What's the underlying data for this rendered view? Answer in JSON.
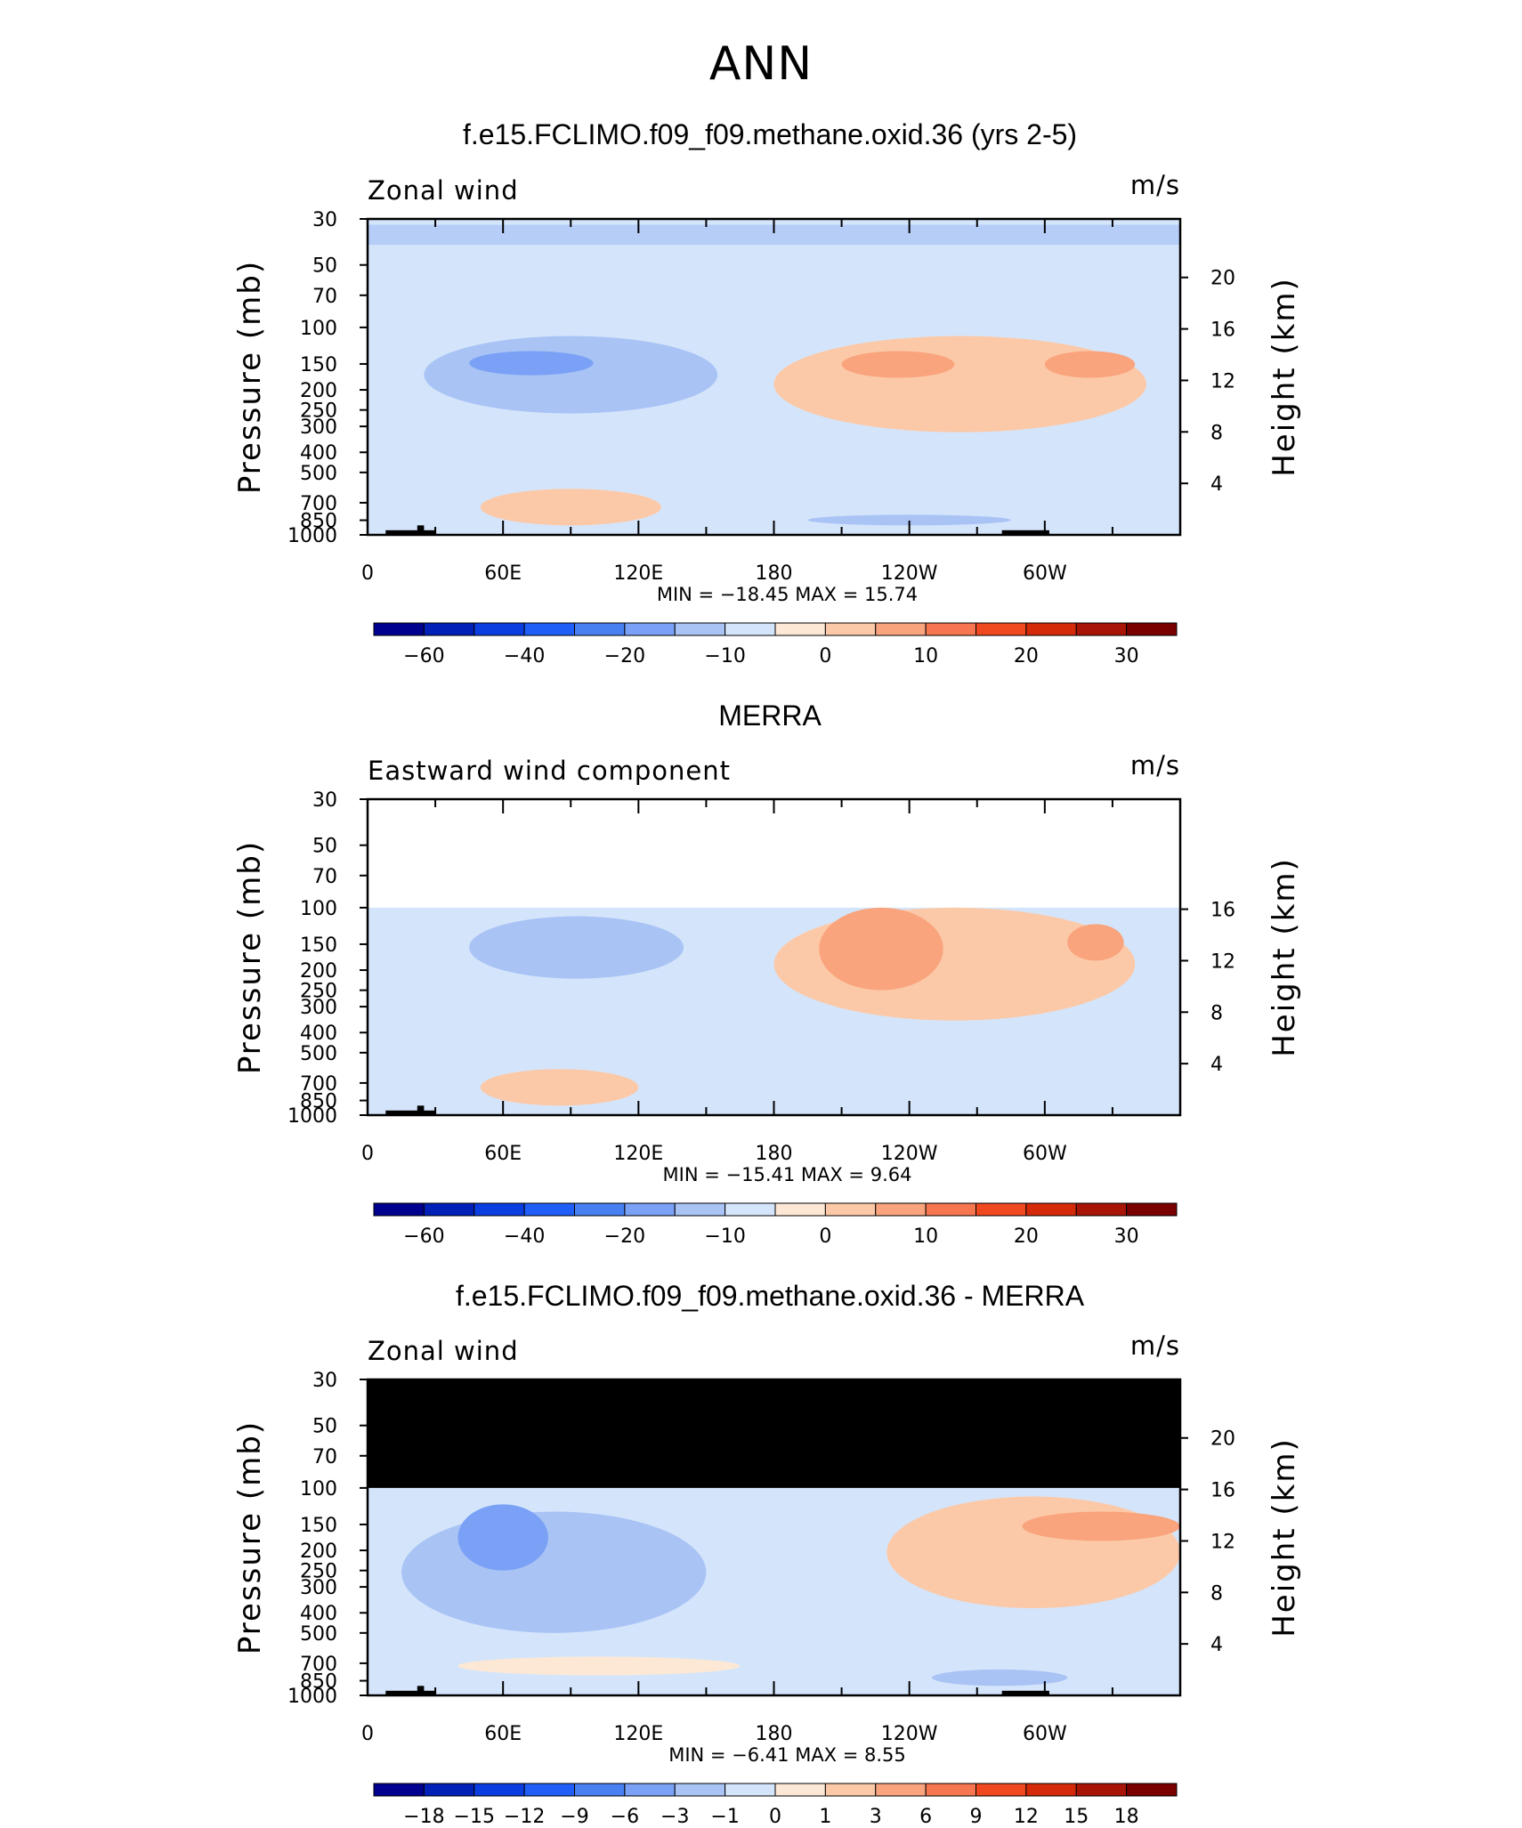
{
  "main_title": "ANN",
  "chart_data": [
    {
      "type": "heatmap",
      "title": "f.e15.FCLIMO.f09_f09.methane.oxid.36 (yrs 2-5)",
      "left_label": "Zonal wind",
      "units_label": "m/s",
      "ylabel": "Pressure (mb)",
      "y2label": "Height (km)",
      "xlabel": "",
      "x_ticks": [
        "0",
        "60E",
        "120E",
        "180",
        "120W",
        "60W"
      ],
      "y_ticks": [
        "30",
        "50",
        "70",
        "100",
        "150",
        "200",
        "250",
        "300",
        "400",
        "500",
        "700",
        "850",
        "1000"
      ],
      "y2_ticks": [
        "20",
        "16",
        "12",
        "8",
        "4"
      ],
      "ylim": [
        1000,
        30
      ],
      "log_y": true,
      "min_max_text": "MIN = −18.45 MAX = 15.74",
      "min": -18.45,
      "max": 15.74,
      "colorbar_ticks": [
        "−60",
        "−40",
        "−20",
        "−10",
        "0",
        "10",
        "20",
        "30"
      ],
      "colorbar_colors": [
        "#00008f",
        "#0020b8",
        "#0a3ee0",
        "#1f5ff8",
        "#4880f2",
        "#7aa1f5",
        "#a9c3f5",
        "#d4e5fb",
        "#fde8d5",
        "#fcc9a8",
        "#f9a47d",
        "#f67650",
        "#f04920",
        "#d42a0a",
        "#a81405",
        "#7a0000"
      ],
      "contours": [
        {
          "level": "-10",
          "color": "#a9c3f5",
          "lon": [
            25,
            155
          ],
          "p": [
            110,
            260
          ]
        },
        {
          "level": "-15",
          "color": "#7aa1f5",
          "lon": [
            45,
            100
          ],
          "p": [
            130,
            170
          ]
        },
        {
          "level": "5",
          "color": "#fcc9a8",
          "lon": [
            180,
            345
          ],
          "p": [
            110,
            320
          ]
        },
        {
          "level": "10",
          "color": "#f9a47d",
          "lon": [
            210,
            260
          ],
          "p": [
            130,
            175
          ]
        },
        {
          "level": "10",
          "color": "#f9a47d",
          "lon": [
            300,
            340
          ],
          "p": [
            130,
            175
          ]
        },
        {
          "level": "5",
          "color": "#fcc9a8",
          "lon": [
            50,
            130
          ],
          "p": [
            600,
            900
          ]
        },
        {
          "level": "-5",
          "color": "#a9c3f5",
          "lon": [
            195,
            285
          ],
          "p": [
            800,
            900
          ]
        }
      ]
    },
    {
      "type": "heatmap",
      "title": "MERRA",
      "left_label": "Eastward wind component",
      "units_label": "m/s",
      "ylabel": "Pressure (mb)",
      "y2label": "Height (km)",
      "xlabel": "",
      "x_ticks": [
        "0",
        "60E",
        "120E",
        "180",
        "120W",
        "60W"
      ],
      "y_ticks": [
        "30",
        "50",
        "70",
        "100",
        "150",
        "200",
        "250",
        "300",
        "400",
        "500",
        "700",
        "850",
        "1000"
      ],
      "y2_ticks": [
        "16",
        "12",
        "8",
        "4"
      ],
      "ylim": [
        1000,
        30
      ],
      "log_y": true,
      "data_top_p": 100,
      "min_max_text": "MIN = −15.41 MAX = 9.64",
      "min": -15.41,
      "max": 9.64,
      "colorbar_ticks": [
        "−60",
        "−40",
        "−20",
        "−10",
        "0",
        "10",
        "20",
        "30"
      ],
      "colorbar_colors": [
        "#00008f",
        "#0020b8",
        "#0a3ee0",
        "#1f5ff8",
        "#4880f2",
        "#7aa1f5",
        "#a9c3f5",
        "#d4e5fb",
        "#fde8d5",
        "#fcc9a8",
        "#f9a47d",
        "#f67650",
        "#f04920",
        "#d42a0a",
        "#a81405",
        "#7a0000"
      ],
      "contours": [
        {
          "level": "-10",
          "color": "#a9c3f5",
          "lon": [
            45,
            140
          ],
          "p": [
            110,
            220
          ]
        },
        {
          "level": "5",
          "color": "#fcc9a8",
          "lon": [
            180,
            340
          ],
          "p": [
            100,
            350
          ]
        },
        {
          "level": "10",
          "color": "#f9a47d",
          "lon": [
            200,
            255
          ],
          "p": [
            100,
            250
          ]
        },
        {
          "level": "10",
          "color": "#f9a47d",
          "lon": [
            310,
            335
          ],
          "p": [
            120,
            180
          ]
        },
        {
          "level": "5",
          "color": "#fcc9a8",
          "lon": [
            50,
            120
          ],
          "p": [
            600,
            900
          ]
        }
      ]
    },
    {
      "type": "heatmap",
      "title": "f.e15.FCLIMO.f09_f09.methane.oxid.36 - MERRA",
      "left_label": "Zonal wind",
      "units_label": "m/s",
      "ylabel": "Pressure (mb)",
      "y2label": "Height (km)",
      "xlabel": "",
      "x_ticks": [
        "0",
        "60E",
        "120E",
        "180",
        "120W",
        "60W"
      ],
      "y_ticks": [
        "30",
        "50",
        "70",
        "100",
        "150",
        "200",
        "250",
        "300",
        "400",
        "500",
        "700",
        "850",
        "1000"
      ],
      "y2_ticks": [
        "20",
        "16",
        "12",
        "8",
        "4"
      ],
      "ylim": [
        1000,
        30
      ],
      "log_y": true,
      "masked_above_p": 100,
      "min_max_text": "MIN = −6.41 MAX = 8.55",
      "min": -6.41,
      "max": 8.55,
      "colorbar_ticks": [
        "−18",
        "−15",
        "−12",
        "−9",
        "−6",
        "−3",
        "−1",
        "0",
        "1",
        "3",
        "6",
        "9",
        "12",
        "15",
        "18"
      ],
      "colorbar_colors": [
        "#00008f",
        "#0020b8",
        "#0a3ee0",
        "#1f5ff8",
        "#4880f2",
        "#7aa1f5",
        "#a9c3f5",
        "#d4e5fb",
        "#fde8d5",
        "#fcc9a8",
        "#f9a47d",
        "#f67650",
        "#f04920",
        "#d42a0a",
        "#a81405",
        "#7a0000"
      ],
      "contours": [
        {
          "level": "-3",
          "color": "#a9c3f5",
          "lon": [
            15,
            150
          ],
          "p": [
            130,
            500
          ]
        },
        {
          "level": "-6",
          "color": "#7aa1f5",
          "lon": [
            40,
            80
          ],
          "p": [
            120,
            250
          ]
        },
        {
          "level": "3",
          "color": "#fcc9a8",
          "lon": [
            230,
            360
          ],
          "p": [
            110,
            380
          ]
        },
        {
          "level": "6",
          "color": "#f9a47d",
          "lon": [
            290,
            360
          ],
          "p": [
            130,
            180
          ]
        },
        {
          "level": "1",
          "color": "#fde8d5",
          "lon": [
            40,
            165
          ],
          "p": [
            650,
            800
          ]
        },
        {
          "level": "-3",
          "color": "#a9c3f5",
          "lon": [
            250,
            310
          ],
          "p": [
            750,
            900
          ]
        }
      ]
    }
  ]
}
